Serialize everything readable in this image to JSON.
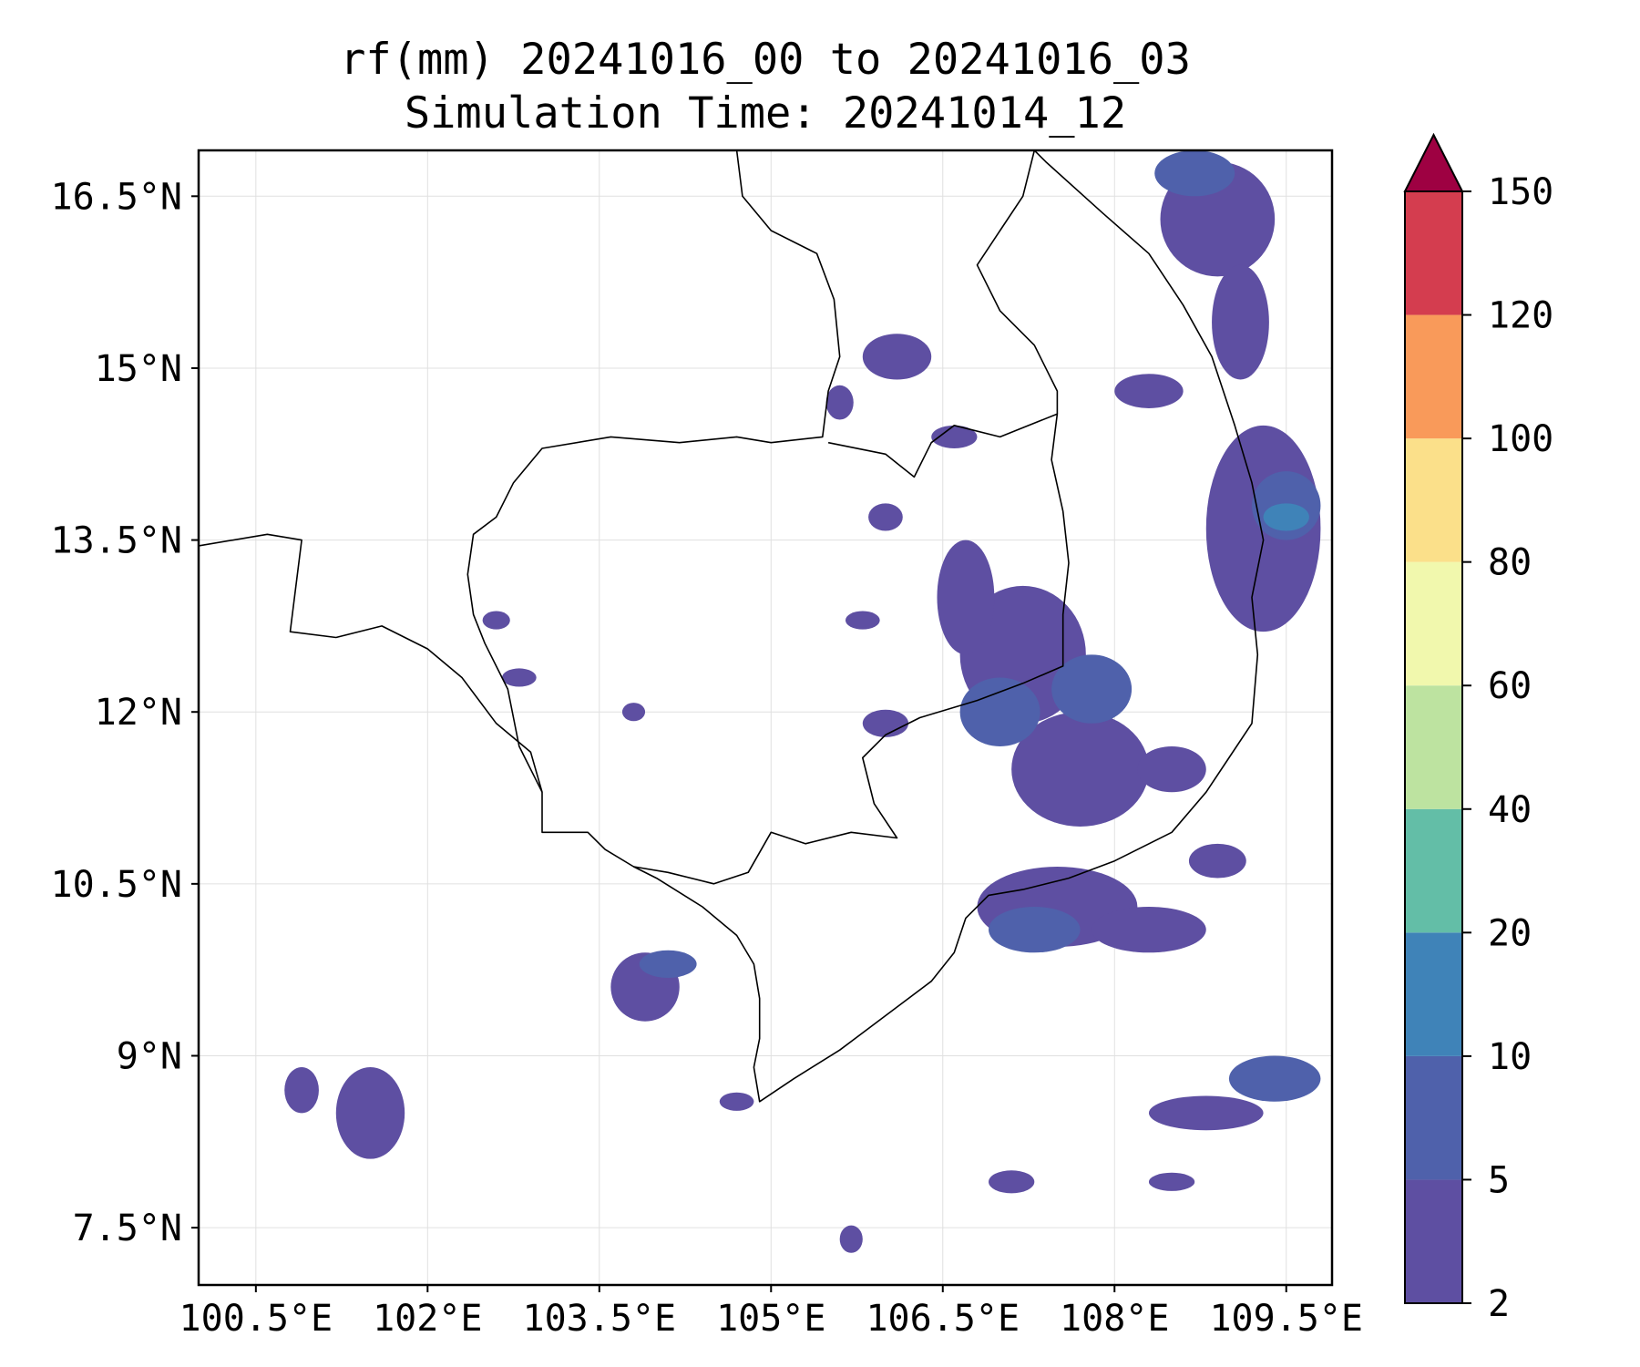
{
  "title": {
    "line1": "rf(mm) 20241016_00 to 20241016_03",
    "line2": "Simulation Time: 20241014_12"
  },
  "map": {
    "lon_range": [
      100.0,
      109.9
    ],
    "lat_range": [
      7.0,
      16.9
    ],
    "x_ticks": [
      {
        "value": 100.5,
        "label": "100.5°E"
      },
      {
        "value": 102.0,
        "label": "102°E"
      },
      {
        "value": 103.5,
        "label": "103.5°E"
      },
      {
        "value": 105.0,
        "label": "105°E"
      },
      {
        "value": 106.5,
        "label": "106.5°E"
      },
      {
        "value": 108.0,
        "label": "108°E"
      },
      {
        "value": 109.5,
        "label": "109.5°E"
      }
    ],
    "y_ticks": [
      {
        "value": 16.5,
        "label": "16.5°N"
      },
      {
        "value": 15.0,
        "label": "15°N"
      },
      {
        "value": 13.5,
        "label": "13.5°N"
      },
      {
        "value": 12.0,
        "label": "12°N"
      },
      {
        "value": 10.5,
        "label": "10.5°N"
      },
      {
        "value": 9.0,
        "label": "9°N"
      },
      {
        "value": 7.5,
        "label": "7.5°N"
      }
    ],
    "grid": true,
    "land_color": "#ffffff",
    "boundary_color": "#000000"
  },
  "colorbar": {
    "levels": [
      {
        "value": 2,
        "label": "2",
        "color": "#5e4fa2"
      },
      {
        "value": 5,
        "label": "5",
        "color": "#4f61ab"
      },
      {
        "value": 10,
        "label": "10",
        "color": "#3f83b8"
      },
      {
        "value": 20,
        "label": "20",
        "color": "#63bea7"
      },
      {
        "value": 40,
        "label": "40",
        "color": "#bde3a0"
      },
      {
        "value": 60,
        "label": "60",
        "color": "#f1f8ad"
      },
      {
        "value": 80,
        "label": "80",
        "color": "#fbe08a"
      },
      {
        "value": 100,
        "label": "100",
        "color": "#f99a5a"
      },
      {
        "value": 120,
        "label": "120",
        "color": "#d43d4f"
      },
      {
        "value": 150,
        "label": "150",
        "color": "#9e0142"
      }
    ],
    "extend": "max"
  },
  "rain_patches": [
    {
      "lon": 107.2,
      "lat": 12.5,
      "rx": 0.55,
      "ry": 0.6,
      "level": 0
    },
    {
      "lon": 107.7,
      "lat": 11.5,
      "rx": 0.6,
      "ry": 0.5,
      "level": 0
    },
    {
      "lon": 107.0,
      "lat": 12.0,
      "rx": 0.35,
      "ry": 0.3,
      "level": 1
    },
    {
      "lon": 107.8,
      "lat": 12.2,
      "rx": 0.35,
      "ry": 0.3,
      "level": 1
    },
    {
      "lon": 106.7,
      "lat": 13.0,
      "rx": 0.25,
      "ry": 0.5,
      "level": 0
    },
    {
      "lon": 107.5,
      "lat": 10.3,
      "rx": 0.7,
      "ry": 0.35,
      "level": 0
    },
    {
      "lon": 107.3,
      "lat": 10.1,
      "rx": 0.4,
      "ry": 0.2,
      "level": 1
    },
    {
      "lon": 108.3,
      "lat": 10.1,
      "rx": 0.5,
      "ry": 0.2,
      "level": 0
    },
    {
      "lon": 109.3,
      "lat": 13.6,
      "rx": 0.5,
      "ry": 0.9,
      "level": 0
    },
    {
      "lon": 109.5,
      "lat": 13.8,
      "rx": 0.3,
      "ry": 0.3,
      "level": 1
    },
    {
      "lon": 109.5,
      "lat": 13.7,
      "rx": 0.2,
      "ry": 0.12,
      "level": 2
    },
    {
      "lon": 108.9,
      "lat": 16.3,
      "rx": 0.5,
      "ry": 0.5,
      "level": 0
    },
    {
      "lon": 109.1,
      "lat": 15.4,
      "rx": 0.25,
      "ry": 0.5,
      "level": 0
    },
    {
      "lon": 108.7,
      "lat": 16.7,
      "rx": 0.35,
      "ry": 0.2,
      "level": 1
    },
    {
      "lon": 106.1,
      "lat": 15.1,
      "rx": 0.3,
      "ry": 0.2,
      "level": 0
    },
    {
      "lon": 105.6,
      "lat": 14.7,
      "rx": 0.12,
      "ry": 0.15,
      "level": 0
    },
    {
      "lon": 103.9,
      "lat": 9.6,
      "rx": 0.3,
      "ry": 0.3,
      "level": 0
    },
    {
      "lon": 104.1,
      "lat": 9.8,
      "rx": 0.25,
      "ry": 0.12,
      "level": 1
    },
    {
      "lon": 101.5,
      "lat": 8.5,
      "rx": 0.3,
      "ry": 0.4,
      "level": 0
    },
    {
      "lon": 100.9,
      "lat": 8.7,
      "rx": 0.15,
      "ry": 0.2,
      "level": 0
    },
    {
      "lon": 108.8,
      "lat": 8.5,
      "rx": 0.5,
      "ry": 0.15,
      "level": 0
    },
    {
      "lon": 109.4,
      "lat": 8.8,
      "rx": 0.4,
      "ry": 0.2,
      "level": 1
    },
    {
      "lon": 108.5,
      "lat": 11.5,
      "rx": 0.3,
      "ry": 0.2,
      "level": 0
    },
    {
      "lon": 108.9,
      "lat": 10.7,
      "rx": 0.25,
      "ry": 0.15,
      "level": 0
    },
    {
      "lon": 106.0,
      "lat": 13.7,
      "rx": 0.15,
      "ry": 0.12,
      "level": 0
    },
    {
      "lon": 106.6,
      "lat": 14.4,
      "rx": 0.2,
      "ry": 0.1,
      "level": 0
    },
    {
      "lon": 108.3,
      "lat": 14.8,
      "rx": 0.3,
      "ry": 0.15,
      "level": 0
    },
    {
      "lon": 106.0,
      "lat": 11.9,
      "rx": 0.2,
      "ry": 0.12,
      "level": 0
    },
    {
      "lon": 104.7,
      "lat": 8.6,
      "rx": 0.15,
      "ry": 0.08,
      "level": 0
    },
    {
      "lon": 105.8,
      "lat": 12.8,
      "rx": 0.15,
      "ry": 0.08,
      "level": 0
    },
    {
      "lon": 102.8,
      "lat": 12.3,
      "rx": 0.15,
      "ry": 0.08,
      "level": 0
    },
    {
      "lon": 103.8,
      "lat": 12.0,
      "rx": 0.1,
      "ry": 0.08,
      "level": 0
    },
    {
      "lon": 102.6,
      "lat": 12.8,
      "rx": 0.12,
      "ry": 0.08,
      "level": 0
    },
    {
      "lon": 107.1,
      "lat": 7.9,
      "rx": 0.2,
      "ry": 0.1,
      "level": 0
    },
    {
      "lon": 108.5,
      "lat": 7.9,
      "rx": 0.2,
      "ry": 0.08,
      "level": 0
    },
    {
      "lon": 105.7,
      "lat": 7.4,
      "rx": 0.1,
      "ry": 0.12,
      "level": 0
    }
  ],
  "boundaries": [
    [
      [
        100.0,
        13.45
      ],
      [
        100.6,
        13.55
      ],
      [
        100.9,
        13.5
      ],
      [
        100.85,
        13.1
      ],
      [
        100.8,
        12.7
      ],
      [
        101.2,
        12.65
      ],
      [
        101.6,
        12.75
      ],
      [
        102.0,
        12.55
      ],
      [
        102.3,
        12.3
      ],
      [
        102.6,
        11.9
      ],
      [
        102.9,
        11.65
      ],
      [
        103.0,
        11.3
      ],
      [
        103.0,
        10.95
      ],
      [
        103.4,
        10.95
      ],
      [
        103.55,
        10.8
      ],
      [
        103.8,
        10.65
      ],
      [
        104.0,
        10.55
      ],
      [
        104.4,
        10.3
      ],
      [
        104.7,
        10.05
      ],
      [
        104.85,
        9.8
      ],
      [
        104.9,
        9.5
      ],
      [
        104.9,
        9.15
      ],
      [
        104.85,
        8.9
      ],
      [
        104.9,
        8.6
      ],
      [
        105.2,
        8.8
      ],
      [
        105.6,
        9.05
      ],
      [
        106.0,
        9.35
      ],
      [
        106.4,
        9.65
      ],
      [
        106.6,
        9.9
      ],
      [
        106.7,
        10.2
      ],
      [
        106.9,
        10.4
      ],
      [
        107.2,
        10.45
      ],
      [
        107.6,
        10.55
      ],
      [
        108.0,
        10.7
      ],
      [
        108.5,
        10.95
      ],
      [
        108.8,
        11.3
      ],
      [
        109.0,
        11.6
      ],
      [
        109.2,
        11.9
      ],
      [
        109.25,
        12.5
      ],
      [
        109.2,
        13.0
      ],
      [
        109.3,
        13.5
      ],
      [
        109.2,
        14.0
      ],
      [
        109.05,
        14.5
      ],
      [
        108.85,
        15.1
      ],
      [
        108.6,
        15.55
      ],
      [
        108.3,
        16.0
      ],
      [
        107.9,
        16.35
      ],
      [
        107.4,
        16.8
      ],
      [
        107.3,
        16.9
      ]
    ],
    [
      [
        104.7,
        16.9
      ],
      [
        104.75,
        16.5
      ],
      [
        105.0,
        16.2
      ],
      [
        105.4,
        16.0
      ],
      [
        105.55,
        15.6
      ],
      [
        105.6,
        15.1
      ],
      [
        105.5,
        14.8
      ],
      [
        105.45,
        14.4
      ],
      [
        105.0,
        14.35
      ],
      [
        104.7,
        14.4
      ],
      [
        104.2,
        14.35
      ],
      [
        103.6,
        14.4
      ],
      [
        103.0,
        14.3
      ],
      [
        102.75,
        14.0
      ],
      [
        102.6,
        13.7
      ],
      [
        102.4,
        13.55
      ],
      [
        102.35,
        13.2
      ],
      [
        102.4,
        12.85
      ],
      [
        102.5,
        12.6
      ],
      [
        102.7,
        12.2
      ],
      [
        102.8,
        11.7
      ],
      [
        103.0,
        11.3
      ]
    ],
    [
      [
        105.5,
        14.35
      ],
      [
        106.0,
        14.25
      ],
      [
        106.25,
        14.05
      ],
      [
        106.4,
        14.35
      ],
      [
        106.6,
        14.5
      ],
      [
        107.0,
        14.4
      ],
      [
        107.5,
        14.6
      ],
      [
        107.45,
        14.2
      ],
      [
        107.55,
        13.75
      ],
      [
        107.6,
        13.3
      ],
      [
        107.55,
        12.85
      ],
      [
        107.55,
        12.4
      ],
      [
        107.2,
        12.25
      ],
      [
        106.8,
        12.1
      ],
      [
        106.3,
        11.95
      ],
      [
        106.0,
        11.8
      ],
      [
        105.8,
        11.6
      ],
      [
        105.9,
        11.2
      ],
      [
        106.1,
        10.9
      ],
      [
        105.7,
        10.95
      ],
      [
        105.3,
        10.85
      ],
      [
        105.0,
        10.95
      ],
      [
        104.8,
        10.6
      ],
      [
        104.5,
        10.5
      ],
      [
        104.1,
        10.6
      ],
      [
        103.8,
        10.65
      ]
    ],
    [
      [
        107.3,
        16.9
      ],
      [
        107.2,
        16.5
      ],
      [
        107.0,
        16.2
      ],
      [
        106.8,
        15.9
      ],
      [
        107.0,
        15.5
      ],
      [
        107.3,
        15.2
      ],
      [
        107.5,
        14.8
      ],
      [
        107.5,
        14.6
      ]
    ]
  ]
}
